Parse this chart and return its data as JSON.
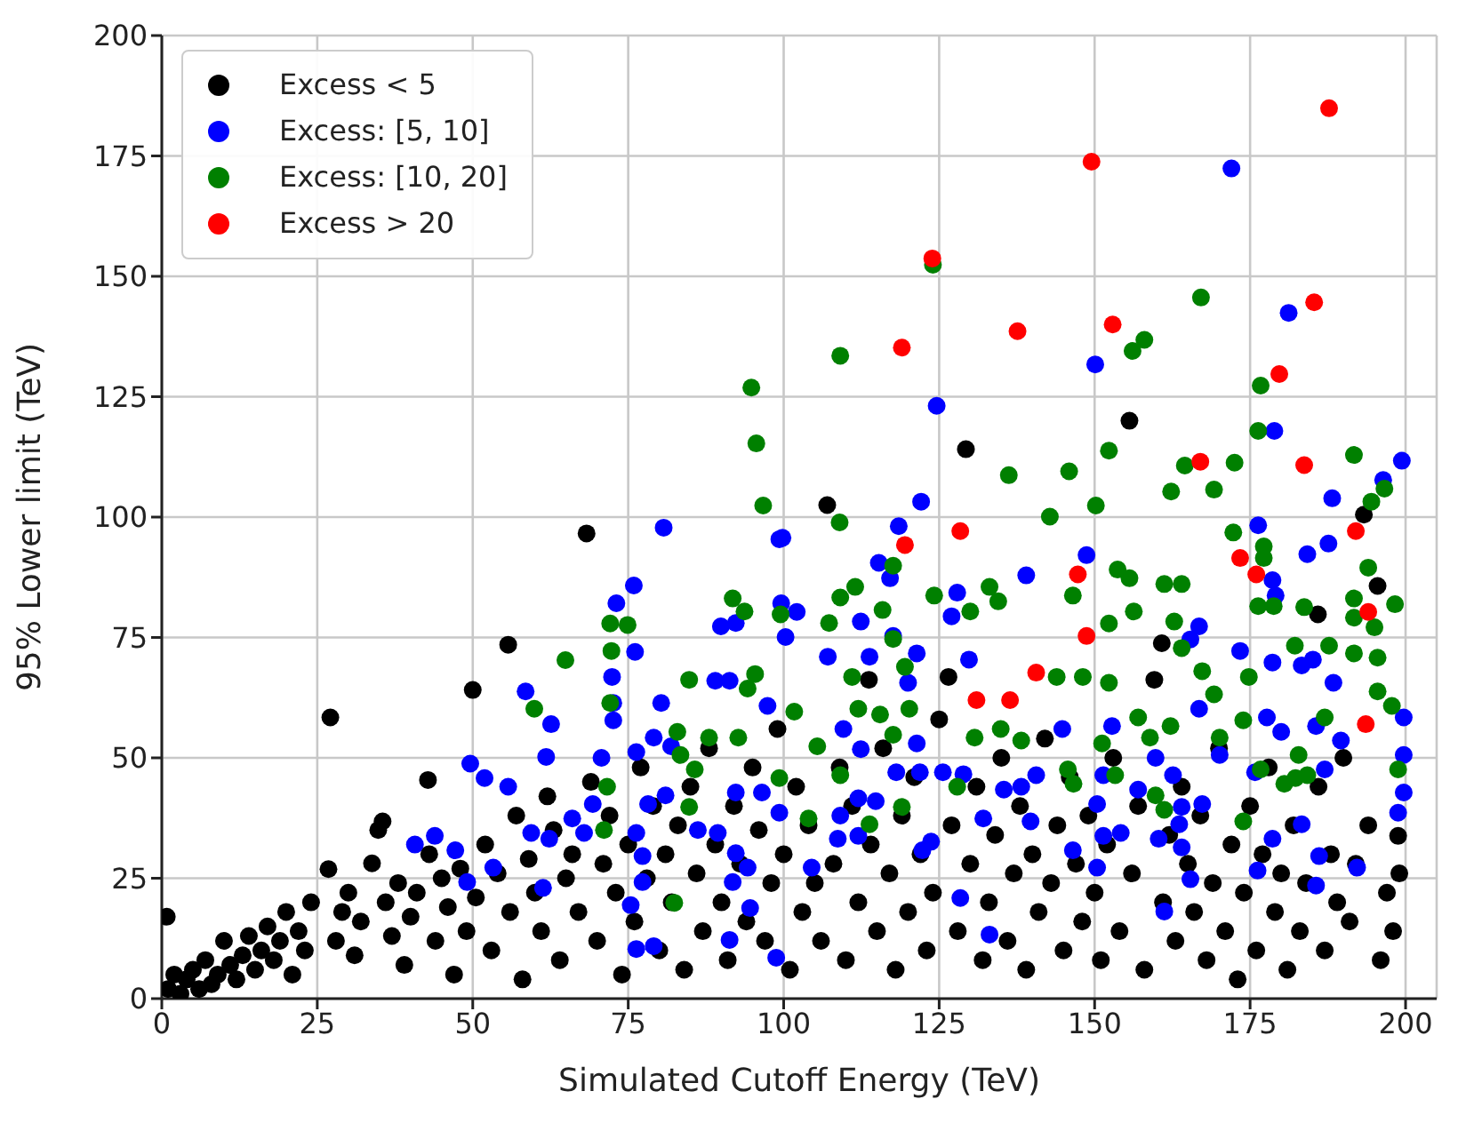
{
  "chart_data": {
    "type": "scatter",
    "xlabel": "Simulated Cutoff Energy (TeV)",
    "ylabel": "95% Lower limit (TeV)",
    "xlim": [
      0,
      205
    ],
    "ylim": [
      0,
      200
    ],
    "xticks": [
      0,
      25,
      50,
      75,
      100,
      125,
      150,
      175,
      200
    ],
    "yticks": [
      0,
      25,
      50,
      75,
      100,
      125,
      150,
      175,
      200
    ],
    "grid": true,
    "legend": "top left",
    "marker": "circle",
    "series": [
      {
        "name": "Excess < 5",
        "color": "#000000",
        "x": [
          0.8,
          1,
          2,
          3,
          4,
          5,
          6,
          7,
          8,
          9,
          10,
          11,
          12,
          13,
          14,
          15,
          16,
          17,
          18,
          19,
          20,
          21,
          22,
          23,
          24,
          26.8,
          27.1,
          28,
          29,
          30,
          31,
          32,
          33.8,
          34.8,
          35.5,
          36,
          37,
          38,
          39,
          40,
          41,
          42.8,
          43,
          44,
          45,
          46,
          47,
          48,
          49,
          50,
          50.5,
          52,
          53,
          54,
          55.7,
          56,
          57,
          58,
          59,
          60,
          61,
          62,
          63,
          64,
          65,
          66,
          67,
          68.3,
          69,
          70,
          71,
          72,
          73,
          74,
          75,
          76,
          77,
          78,
          79,
          80,
          81,
          82,
          83,
          84,
          85,
          86,
          87,
          88,
          89,
          90,
          91,
          92,
          93,
          94,
          95,
          96,
          97,
          98,
          99,
          100,
          101,
          102,
          103,
          104,
          105,
          106,
          107,
          108,
          109,
          110,
          111,
          112,
          113.7,
          114,
          115,
          116,
          117,
          118,
          119,
          120,
          121,
          122,
          123,
          124,
          125,
          126.5,
          127,
          128,
          129.3,
          130,
          131,
          132,
          133,
          134,
          135,
          136,
          137,
          138,
          139,
          140,
          141,
          142,
          143,
          144,
          145,
          146,
          147,
          148,
          149,
          150,
          151,
          152,
          153,
          154,
          155.6,
          156,
          157,
          158,
          159.6,
          160.8,
          161,
          162,
          163,
          164,
          165,
          166,
          167,
          168,
          169,
          170,
          171,
          172,
          173,
          174,
          175,
          176,
          177,
          178,
          179,
          180,
          181,
          182,
          183,
          184,
          185.9,
          186,
          187,
          188,
          189,
          190,
          191,
          192,
          193.3,
          194,
          195.5,
          196,
          197,
          198,
          198.8,
          199
        ],
        "values": [
          17,
          2,
          5,
          1,
          4,
          6,
          2,
          8,
          3,
          5,
          12,
          7,
          4,
          9,
          13,
          6,
          10,
          15,
          8,
          12,
          18,
          5,
          14,
          10,
          20,
          26.9,
          58.4,
          12,
          18,
          22,
          9,
          16,
          28.1,
          35,
          36.8,
          20,
          13,
          24,
          7,
          17,
          22,
          45.4,
          30,
          12,
          25,
          19,
          5,
          27,
          14,
          64.1,
          21,
          32,
          10,
          26,
          73.5,
          18,
          38,
          4,
          29,
          22,
          14,
          42,
          35,
          8,
          25,
          30,
          18,
          96.6,
          45,
          12,
          28,
          38,
          22,
          5,
          32,
          16,
          48,
          25,
          40,
          10,
          30,
          20,
          36,
          6,
          44,
          26,
          14,
          52,
          32,
          20,
          8,
          40,
          28,
          16,
          48,
          35,
          12,
          24,
          56,
          30,
          6,
          44,
          18,
          36,
          24,
          12,
          102.5,
          28,
          48,
          8,
          40,
          20,
          66.2,
          32,
          14,
          52,
          26,
          6,
          38,
          18,
          46,
          30,
          10,
          22,
          58,
          66.8,
          36,
          14,
          114.1,
          28,
          44,
          8,
          20,
          34,
          50,
          12,
          26,
          40,
          6,
          30,
          18,
          54,
          24,
          36,
          10,
          46,
          28,
          16,
          38,
          22,
          8,
          32,
          50,
          14,
          120,
          26,
          40,
          6,
          66.2,
          73.8,
          20,
          34,
          12,
          44,
          28,
          18,
          38,
          8,
          24,
          52,
          14,
          32,
          4,
          22,
          40,
          10,
          30,
          48,
          18,
          26,
          6,
          36,
          14,
          24,
          79.8,
          44,
          10,
          30,
          20,
          50,
          16,
          28,
          100.5,
          36,
          85.7,
          8,
          22,
          14,
          33.8,
          26
        ]
      },
      {
        "name": "Excess: [5, 10]",
        "color": "#0000ff",
        "x": [
          172,
          181.2,
          150.1,
          80.7,
          75.9,
          73.1,
          99.3,
          89.9,
          92.3,
          99.6,
          100.3,
          76.1,
          72.4,
          89,
          91.3,
          58.5,
          124.6,
          178.9,
          199.4,
          196.4,
          188.2,
          122.1,
          176.3,
          118.5,
          99.8,
          187.6,
          184.2,
          148.7,
          115.3,
          117.1,
          139,
          178.6,
          179.1,
          127.9,
          127,
          102.1,
          112.4,
          117.6,
          166.8,
          165.4,
          107.1,
          113.8,
          121.4,
          129.8,
          173.4,
          178.6,
          183.3,
          185.1,
          188.4,
          120,
          109.6,
          112.4,
          121.4,
          118.1,
          121.9,
          125.6,
          128.9,
          112,
          114.8,
          109.1,
          108.7,
          112,
          104.5,
          122.3,
          123.7,
          135.4,
          138.2,
          140.6,
          132.1,
          139.7,
          144.8,
          146.5,
          150.4,
          151.4,
          154.2,
          151.4,
          152.8,
          150.4,
          128.4,
          133.1,
          161.2,
          157,
          164,
          163.6,
          164,
          167.3,
          165.4,
          160.3,
          166.8,
          170.1,
          159.8,
          162.6,
          177.7,
          180,
          185.6,
          175.8,
          178.6,
          183.3,
          187,
          189.6,
          186.1,
          192.2,
          185.6,
          199.7,
          199.7,
          199.7,
          198.8,
          176.2,
          62.6,
          72.6,
          72.6,
          80.3,
          97.4,
          79.1,
          81.9,
          49.6,
          51.9,
          55.7,
          61.8,
          70.7,
          76.3,
          69.3,
          78.2,
          81,
          66,
          67.9,
          59.4,
          62.3,
          40.7,
          43.9,
          47.2,
          53.3,
          49.1,
          61.3,
          76.3,
          77.3,
          77.3,
          75.4,
          76.3,
          79.1,
          86.2,
          89.4,
          92.3,
          96.5,
          99.3,
          92.3,
          94.2,
          91.3,
          94.6,
          98.8,
          91.8
        ],
        "values": [
          172.4,
          142.4,
          131.7,
          97.8,
          85.8,
          82.1,
          95.4,
          77.3,
          78,
          82.1,
          75.1,
          72,
          66.8,
          66,
          66,
          63.8,
          123.1,
          117.9,
          111.7,
          107.7,
          103.9,
          103.2,
          98.3,
          98.1,
          95.7,
          94.5,
          92.3,
          92.1,
          90.5,
          87.3,
          87.9,
          86.9,
          83.7,
          84.3,
          79.4,
          80.3,
          78.3,
          75.3,
          77.3,
          74.6,
          71,
          71,
          71.7,
          70.4,
          72.2,
          69.8,
          69.2,
          70.4,
          65.6,
          65.6,
          56,
          51.8,
          53,
          47,
          47,
          47,
          46.6,
          41.6,
          41,
          38,
          33.2,
          33.8,
          27.2,
          30.8,
          32.6,
          43.4,
          44,
          46.4,
          37.4,
          36.8,
          56,
          30.8,
          40.4,
          33.8,
          34.4,
          46.4,
          56.6,
          27.2,
          20.9,
          13.3,
          18.1,
          43.4,
          39.8,
          36.2,
          31.4,
          40.4,
          24.8,
          33.2,
          60.2,
          50.6,
          50,
          46.4,
          58.4,
          55.4,
          56.6,
          47,
          33.2,
          36.2,
          47.6,
          53.6,
          29.6,
          27.2,
          23.5,
          58.4,
          50.6,
          42.8,
          38.6,
          26.6,
          57,
          57.8,
          61.4,
          61.4,
          60.8,
          54.2,
          52.4,
          48.8,
          45.8,
          44,
          50.2,
          50,
          51.2,
          40.4,
          40.4,
          42.2,
          37.4,
          34.4,
          34.4,
          33.2,
          32,
          33.8,
          30.8,
          27.2,
          24.2,
          23,
          34.4,
          29.6,
          24.2,
          19.4,
          10.3,
          10.9,
          35,
          34.4,
          42.8,
          42.8,
          38.6,
          30.2,
          27.2,
          12.2,
          18.8,
          8.5,
          24.2
        ]
      },
      {
        "name": "Excess: [10, 20]",
        "color": "#008000",
        "x": [
          109.1,
          124,
          167.1,
          158,
          156.1,
          94.8,
          95.6,
          96.7,
          91.8,
          93.7,
          72.1,
          74.9,
          72.3,
          64.9,
          84.8,
          99.5,
          95.4,
          176.7,
          176.3,
          152.3,
          191.7,
          136.2,
          145.9,
          164.5,
          172.5,
          162.3,
          169.2,
          150.2,
          142.8,
          109,
          194.5,
          196.6,
          172.3,
          177.2,
          177.2,
          194,
          117.6,
          153.7,
          155.6,
          161.2,
          164,
          111.5,
          109.1,
          133.1,
          134.5,
          124.2,
          146.5,
          115.9,
          107.3,
          130,
          156.3,
          162.8,
          152.3,
          176.3,
          178.8,
          183.7,
          191.7,
          191.7,
          198.3,
          195,
          117.6,
          164,
          182.2,
          187.7,
          191.7,
          195.5,
          119.5,
          143.9,
          148.1,
          152.3,
          167.3,
          174.8,
          111,
          101.7,
          112,
          115.5,
          120.2,
          105.4,
          117.6,
          109.1,
          119,
          113.8,
          104,
          127.9,
          130.7,
          134.9,
          138.2,
          145.7,
          146.6,
          151.2,
          153.3,
          157,
          158.9,
          162.2,
          159.8,
          161.2,
          169.2,
          173.9,
          170.1,
          173.9,
          176.7,
          182.3,
          180.5,
          184.2,
          187,
          182.8,
          198.8,
          195.5,
          197.8,
          72.1,
          59.9,
          82.9,
          88,
          92.7,
          83.4,
          85.7,
          71.6,
          84.8,
          71.1,
          82.4,
          99.3,
          94.2
        ],
        "values": [
          133.5,
          152.4,
          145.6,
          136.8,
          134.5,
          126.9,
          115.3,
          102.4,
          83.1,
          80.4,
          77.9,
          77.6,
          72.2,
          70.3,
          66.2,
          79.8,
          67.4,
          127.3,
          117.9,
          113.8,
          112.9,
          108.7,
          109.5,
          110.7,
          111.3,
          105.3,
          105.7,
          102.4,
          100.1,
          98.9,
          103.2,
          105.9,
          96.8,
          93.9,
          91.5,
          89.5,
          89.9,
          89.1,
          87.3,
          86.1,
          86.1,
          85.5,
          83.3,
          85.5,
          82.5,
          83.7,
          83.7,
          80.7,
          78,
          80.4,
          80.4,
          78.3,
          77.9,
          81.5,
          81.5,
          81.3,
          83.1,
          79.1,
          81.9,
          77.1,
          74.7,
          72.8,
          73.3,
          73.3,
          71.7,
          70.8,
          68.9,
          66.8,
          66.8,
          65.6,
          68,
          66.8,
          66.8,
          59.6,
          60.2,
          59,
          60.2,
          52.4,
          54.8,
          46.4,
          39.8,
          36.2,
          37.4,
          44,
          54.2,
          56,
          53.6,
          47.6,
          44.6,
          53,
          46.4,
          58.4,
          54.2,
          56.6,
          42.2,
          39.2,
          63.2,
          57.8,
          54.2,
          36.8,
          47.6,
          45.8,
          44.6,
          46.4,
          58.4,
          50.6,
          47.6,
          63.8,
          60.8,
          61.4,
          60.2,
          55.4,
          54.2,
          54.2,
          50.6,
          47.6,
          44,
          39.8,
          35,
          19.9,
          45.8,
          64.4
        ]
      },
      {
        "name": "Excess > 20",
        "color": "#ff0000",
        "x": [
          187.7,
          149.5,
          123.9,
          185.3,
          137.6,
          152.9,
          119,
          179.7,
          167,
          183.7,
          128.4,
          192,
          119.5,
          173.4,
          176,
          147.3,
          194,
          148.7,
          140.6,
          131,
          136.4,
          193.6
        ],
        "values": [
          184.9,
          173.8,
          153.7,
          144.6,
          138.6,
          140,
          135.2,
          129.7,
          111.5,
          110.8,
          97.1,
          97.1,
          94.2,
          91.5,
          88.1,
          88.1,
          80.3,
          75.3,
          67.7,
          62,
          62,
          57
        ]
      }
    ]
  }
}
